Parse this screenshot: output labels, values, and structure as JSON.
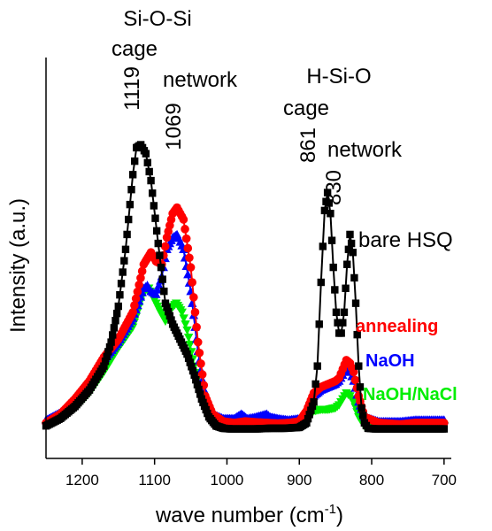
{
  "chart_data": {
    "type": "line",
    "xlabel": "wave number (cm",
    "xlabel_sup": "-1",
    "xlabel_close": ")",
    "ylabel": "Intensity (a.u.)",
    "x_reversed": true,
    "xlim": [
      1250,
      690
    ],
    "ylim": [
      0,
      1.0
    ],
    "x_ticks": [
      1200,
      1100,
      1000,
      900,
      800,
      700
    ],
    "x_tick_labels": [
      "1200",
      "1100",
      "1000",
      "900",
      "800",
      "700"
    ],
    "grid": false,
    "annotations": {
      "sios_title": "Si-O-Si",
      "sios_cage": "cage",
      "sios_network": "network",
      "peak_1119": "1119",
      "peak_1069": "1069",
      "hsio_title": "H-Si-O",
      "hsio_cage": "cage",
      "hsio_network": "network",
      "peak_861": "861",
      "peak_830": "830"
    },
    "series": [
      {
        "name": "bare HSQ",
        "color": "#000000",
        "marker": "square",
        "x": [
          1250,
          1230,
          1210,
          1190,
          1170,
          1160,
          1150,
          1140,
          1130,
          1125,
          1119,
          1112,
          1105,
          1095,
          1085,
          1075,
          1065,
          1055,
          1045,
          1035,
          1025,
          1015,
          1005,
          995,
          980,
          960,
          940,
          920,
          900,
          890,
          880,
          875,
          870,
          865,
          861,
          857,
          853,
          849,
          845,
          842,
          838,
          834,
          830,
          826,
          822,
          818,
          814,
          810,
          805,
          795,
          780,
          760,
          740,
          720,
          700
        ],
        "y": [
          0.02,
          0.045,
          0.085,
          0.14,
          0.22,
          0.3,
          0.42,
          0.61,
          0.86,
          0.95,
          0.96,
          0.93,
          0.84,
          0.63,
          0.43,
          0.36,
          0.31,
          0.26,
          0.19,
          0.11,
          0.05,
          0.02,
          0.012,
          0.01,
          0.01,
          0.01,
          0.012,
          0.012,
          0.015,
          0.03,
          0.1,
          0.22,
          0.5,
          0.74,
          0.8,
          0.73,
          0.55,
          0.4,
          0.33,
          0.33,
          0.4,
          0.56,
          0.66,
          0.6,
          0.43,
          0.22,
          0.08,
          0.03,
          0.012,
          0.01,
          0.01,
          0.01,
          0.01,
          0.01,
          0.01
        ]
      },
      {
        "name": "annealing",
        "color": "#ff0000",
        "marker": "circle",
        "x": [
          1250,
          1230,
          1210,
          1190,
          1170,
          1150,
          1130,
          1115,
          1105,
          1098,
          1090,
          1083,
          1075,
          1069,
          1060,
          1050,
          1040,
          1030,
          1020,
          1005,
          990,
          975,
          960,
          945,
          930,
          915,
          900,
          890,
          880,
          870,
          860,
          850,
          845,
          840,
          835,
          830,
          825,
          818,
          810,
          790,
          760,
          740,
          720,
          700
        ],
        "y": [
          0.03,
          0.06,
          0.11,
          0.17,
          0.25,
          0.31,
          0.4,
          0.56,
          0.6,
          0.57,
          0.56,
          0.65,
          0.73,
          0.75,
          0.71,
          0.55,
          0.3,
          0.12,
          0.06,
          0.035,
          0.03,
          0.035,
          0.032,
          0.03,
          0.028,
          0.03,
          0.035,
          0.07,
          0.13,
          0.15,
          0.16,
          0.17,
          0.18,
          0.21,
          0.24,
          0.23,
          0.2,
          0.12,
          0.05,
          0.03,
          0.025,
          0.03,
          0.03,
          0.03
        ]
      },
      {
        "name": "NaOH",
        "color": "#0000ff",
        "marker": "triangle",
        "x": [
          1250,
          1230,
          1210,
          1190,
          1170,
          1150,
          1130,
          1115,
          1110,
          1105,
          1098,
          1090,
          1083,
          1075,
          1069,
          1060,
          1050,
          1040,
          1030,
          1020,
          1005,
          990,
          980,
          972,
          960,
          945,
          940,
          930,
          915,
          900,
          890,
          880,
          870,
          860,
          850,
          845,
          840,
          835,
          830,
          825,
          818,
          810,
          790,
          760,
          740,
          720,
          700
        ],
        "y": [
          0.04,
          0.065,
          0.11,
          0.17,
          0.24,
          0.3,
          0.38,
          0.48,
          0.49,
          0.47,
          0.46,
          0.52,
          0.61,
          0.65,
          0.66,
          0.61,
          0.47,
          0.27,
          0.11,
          0.06,
          0.045,
          0.045,
          0.06,
          0.045,
          0.05,
          0.06,
          0.05,
          0.045,
          0.04,
          0.045,
          0.06,
          0.12,
          0.14,
          0.15,
          0.16,
          0.17,
          0.19,
          0.21,
          0.2,
          0.17,
          0.1,
          0.05,
          0.035,
          0.035,
          0.04,
          0.04,
          0.04
        ]
      },
      {
        "name": "NaOH/NaCl",
        "color": "#00ee00",
        "marker": "triangle-down",
        "x": [
          1250,
          1230,
          1210,
          1190,
          1170,
          1150,
          1130,
          1115,
          1108,
          1100,
          1092,
          1085,
          1078,
          1070,
          1062,
          1055,
          1045,
          1035,
          1025,
          1015,
          1000,
          985,
          970,
          955,
          940,
          925,
          910,
          900,
          890,
          880,
          870,
          860,
          850,
          845,
          840,
          835,
          830,
          825,
          818,
          810,
          790,
          760,
          740,
          720,
          700
        ],
        "y": [
          0.02,
          0.045,
          0.08,
          0.13,
          0.2,
          0.28,
          0.35,
          0.47,
          0.48,
          0.44,
          0.4,
          0.37,
          0.41,
          0.43,
          0.4,
          0.34,
          0.22,
          0.11,
          0.05,
          0.025,
          0.02,
          0.02,
          0.025,
          0.02,
          0.025,
          0.02,
          0.02,
          0.025,
          0.04,
          0.07,
          0.075,
          0.075,
          0.08,
          0.09,
          0.11,
          0.13,
          0.12,
          0.1,
          0.05,
          0.02,
          0.015,
          0.015,
          0.02,
          0.02,
          0.02
        ]
      }
    ]
  }
}
